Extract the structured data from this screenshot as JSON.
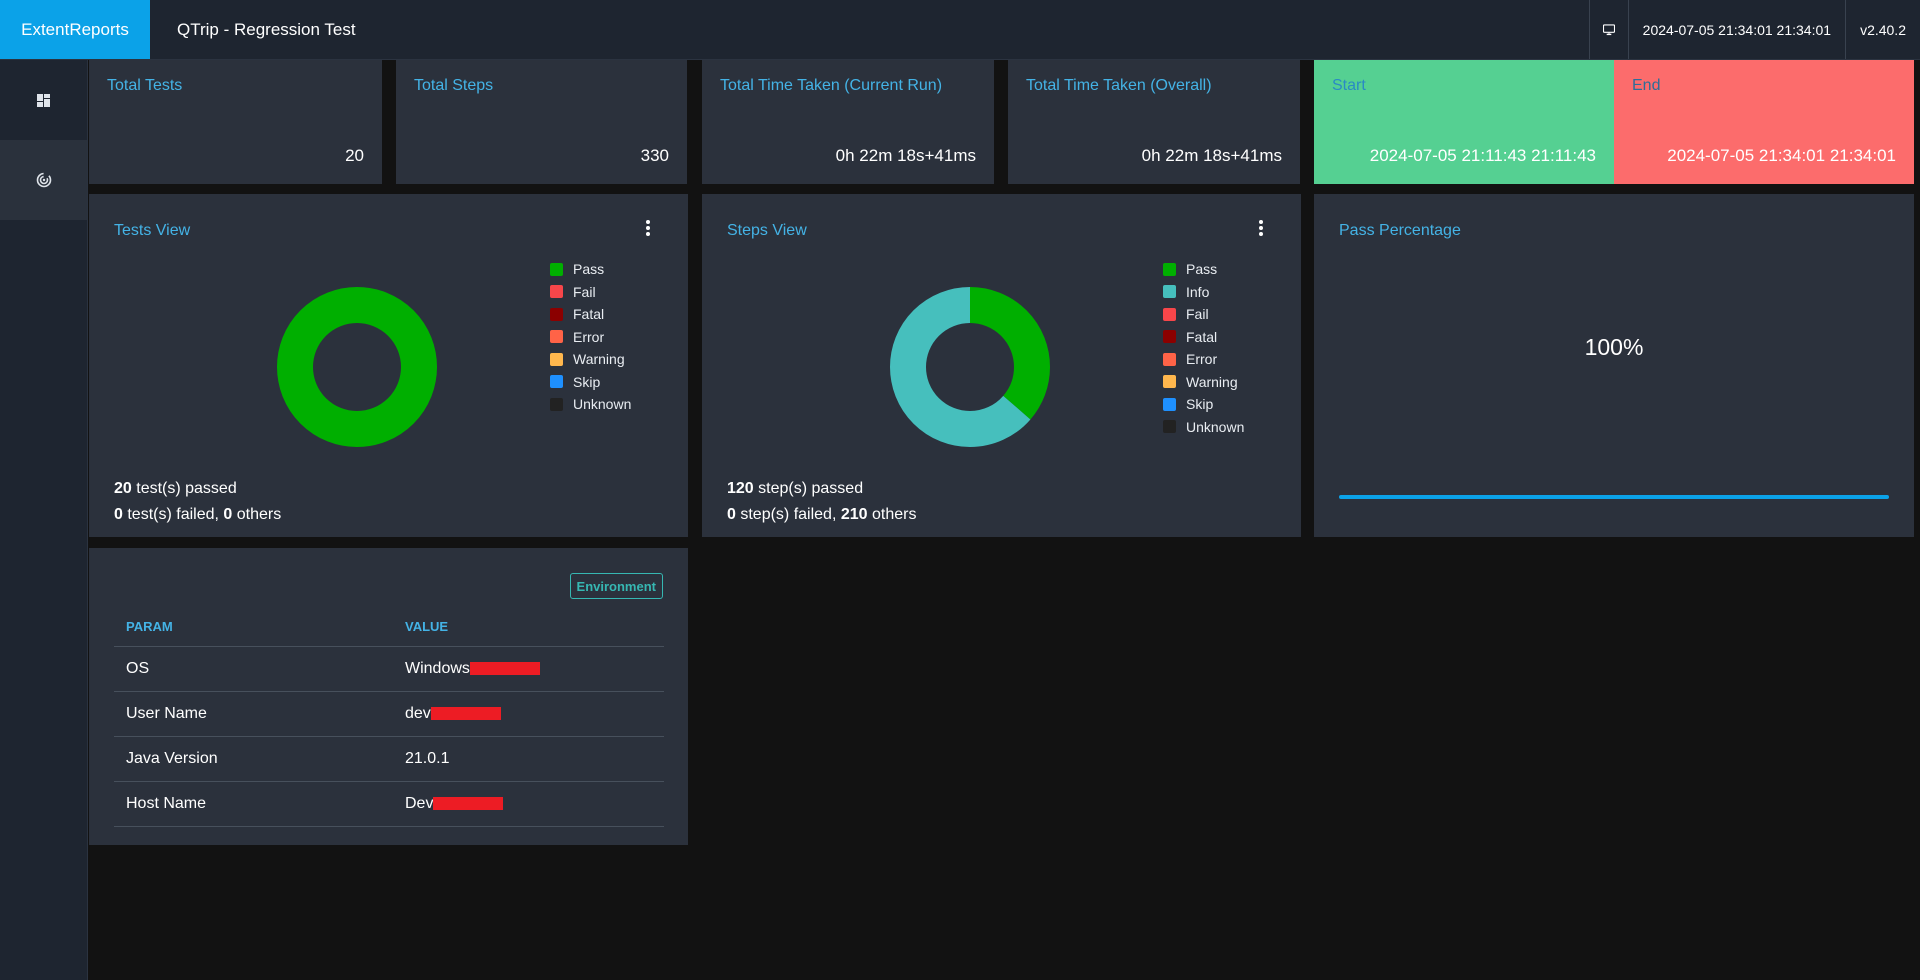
{
  "header": {
    "brand": "ExtentReports",
    "report_name": "QTrip - Regression Test",
    "timestamp": "2024-07-05 21:34:01 21:34:01",
    "version": "v2.40.2"
  },
  "sidebar": {
    "items": [
      {
        "icon": "dashboard-icon"
      },
      {
        "icon": "spiral-icon"
      }
    ]
  },
  "stats": {
    "total_tests": {
      "label": "Total Tests",
      "value": "20"
    },
    "total_steps": {
      "label": "Total Steps",
      "value": "330"
    },
    "time_current": {
      "label": "Total Time Taken (Current Run)",
      "value": "0h 22m 18s+41ms"
    },
    "time_overall": {
      "label": "Total Time Taken (Overall)",
      "value": "0h 22m 18s+41ms"
    },
    "start": {
      "label": "Start",
      "value": "2024-07-05 21:11:43 21:11:43"
    },
    "end": {
      "label": "End",
      "value": "2024-07-05 21:34:01 21:34:01"
    }
  },
  "tests_view": {
    "title": "Tests View",
    "legend": [
      {
        "label": "Pass",
        "color": "#00af00"
      },
      {
        "label": "Fail",
        "color": "#f7464a"
      },
      {
        "label": "Fatal",
        "color": "#8b0000"
      },
      {
        "label": "Error",
        "color": "#ff6347"
      },
      {
        "label": "Warning",
        "color": "#ffb74d"
      },
      {
        "label": "Skip",
        "color": "#1e90ff"
      },
      {
        "label": "Unknown",
        "color": "#222222"
      }
    ],
    "summary_line1_count": "20",
    "summary_line1_text": " test(s) passed",
    "summary_line2_count": "0",
    "summary_line2_text": " test(s) failed, ",
    "summary_line2_others": "0",
    "summary_line2_suffix": " others"
  },
  "steps_view": {
    "title": "Steps View",
    "legend": [
      {
        "label": "Pass",
        "color": "#00af00"
      },
      {
        "label": "Info",
        "color": "#46bfbd"
      },
      {
        "label": "Fail",
        "color": "#f7464a"
      },
      {
        "label": "Fatal",
        "color": "#8b0000"
      },
      {
        "label": "Error",
        "color": "#ff6347"
      },
      {
        "label": "Warning",
        "color": "#ffb74d"
      },
      {
        "label": "Skip",
        "color": "#1e90ff"
      },
      {
        "label": "Unknown",
        "color": "#222222"
      }
    ],
    "summary_line1_count": "120",
    "summary_line1_text": " step(s) passed",
    "summary_line2_count": "0",
    "summary_line2_text": " step(s) failed, ",
    "summary_line2_others": "210",
    "summary_line2_suffix": " others"
  },
  "pass_percentage": {
    "title": "Pass Percentage",
    "value": "100%",
    "progress": 1.0
  },
  "environment": {
    "button_label": "Environment",
    "headers": [
      "PARAM",
      "VALUE"
    ],
    "rows": [
      {
        "param": "OS",
        "value": "Windows"
      },
      {
        "param": "User Name",
        "value": "dev"
      },
      {
        "param": "Java Version",
        "value": "21.0.1"
      },
      {
        "param": "Host Name",
        "value": "Dev"
      }
    ]
  },
  "chart_data": [
    {
      "type": "pie",
      "title": "Tests View",
      "categories": [
        "Pass",
        "Fail",
        "Fatal",
        "Error",
        "Warning",
        "Skip",
        "Unknown"
      ],
      "values": [
        20,
        0,
        0,
        0,
        0,
        0,
        0
      ]
    },
    {
      "type": "pie",
      "title": "Steps View",
      "categories": [
        "Pass",
        "Info",
        "Fail",
        "Fatal",
        "Error",
        "Warning",
        "Skip",
        "Unknown"
      ],
      "values": [
        120,
        210,
        0,
        0,
        0,
        0,
        0,
        0
      ]
    }
  ]
}
